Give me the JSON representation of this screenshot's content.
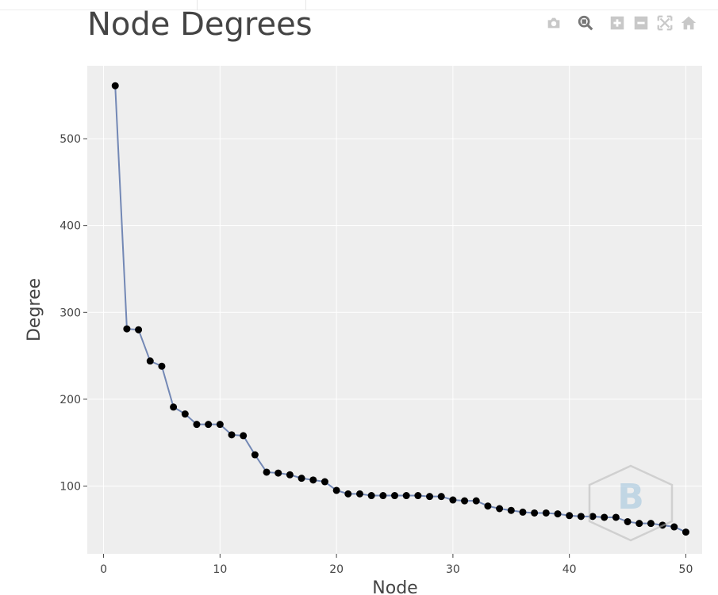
{
  "title": "Node Degrees",
  "modebar": {
    "buttons": [
      "camera-icon",
      "zoom-icon",
      "zoom-in-icon",
      "zoom-out-icon",
      "autoscale-icon",
      "home-icon"
    ]
  },
  "colors": {
    "plot_bg": "#eeeeee",
    "grid": "#ffffff",
    "line": "#7388b5",
    "marker": "#000000",
    "text": "#444444",
    "icon": "#c8c8c8",
    "watermark": "#bfd3e2"
  },
  "chart_data": {
    "type": "line",
    "title": "Node Degrees",
    "xlabel": "Node",
    "ylabel": "Degree",
    "xlim": [
      -1.4,
      51.4
    ],
    "ylim": [
      22,
      584
    ],
    "xticks": [
      0,
      10,
      20,
      30,
      40,
      50
    ],
    "yticks": [
      100,
      200,
      300,
      400,
      500
    ],
    "grid": true,
    "markers": true,
    "x": [
      1,
      2,
      3,
      4,
      5,
      6,
      7,
      8,
      9,
      10,
      11,
      12,
      13,
      14,
      15,
      16,
      17,
      18,
      19,
      20,
      21,
      22,
      23,
      24,
      25,
      26,
      27,
      28,
      29,
      30,
      31,
      32,
      33,
      34,
      35,
      36,
      37,
      38,
      39,
      40,
      41,
      42,
      43,
      44,
      45,
      46,
      47,
      48,
      49,
      50
    ],
    "values": [
      561,
      281,
      280,
      244,
      238,
      191,
      183,
      171,
      171,
      171,
      159,
      158,
      136,
      116,
      115,
      113,
      109,
      107,
      105,
      95,
      91,
      91,
      89,
      89,
      89,
      89,
      89,
      88,
      88,
      84,
      83,
      83,
      77,
      74,
      72,
      70,
      69,
      69,
      68,
      66,
      65,
      65,
      64,
      64,
      59,
      57,
      57,
      55,
      53,
      47
    ]
  }
}
